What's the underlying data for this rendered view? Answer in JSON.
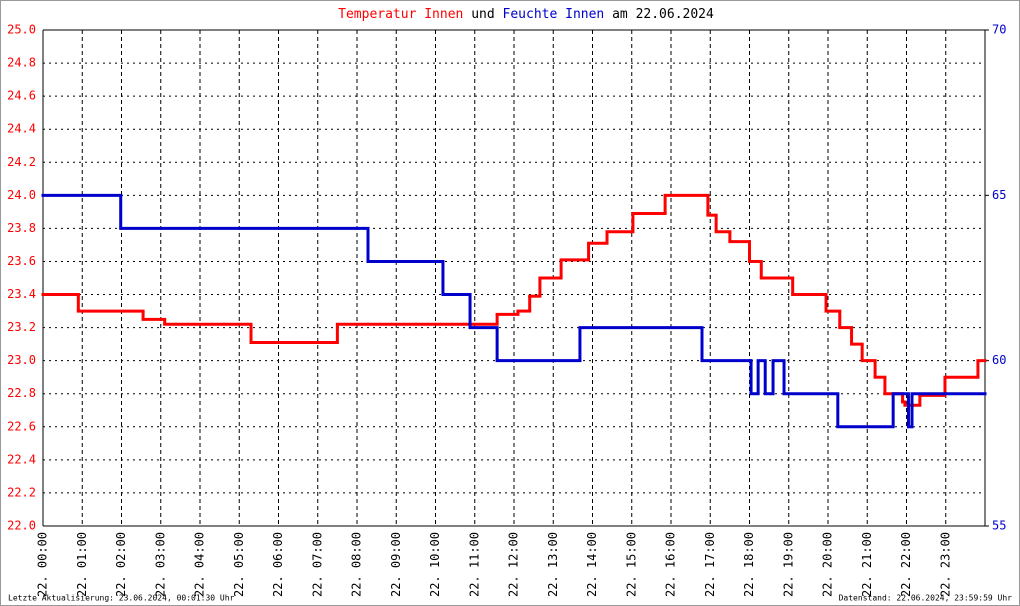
{
  "chart_data": {
    "type": "step-line",
    "title": [
      {
        "text": "Temperatur Innen",
        "color": "#ff0000"
      },
      {
        "text": "und",
        "color": "#000000"
      },
      {
        "text": "Feuchte Innen",
        "color": "#0000cc"
      },
      {
        "text": "am 22.06.2024",
        "color": "#000000"
      }
    ],
    "footer_left": "Letzte Aktualisierung: 23.06.2024, 00:01:30 Uhr",
    "footer_right": "Datenstand: 22.06.2024, 23:59:59 Uhr",
    "xlim": [
      0,
      24
    ],
    "xticks": [
      {
        "value": 0,
        "label": "22. 00:00"
      },
      {
        "value": 1,
        "label": "22. 01:00"
      },
      {
        "value": 2,
        "label": "22. 02:00"
      },
      {
        "value": 3,
        "label": "22. 03:00"
      },
      {
        "value": 4,
        "label": "22. 04:00"
      },
      {
        "value": 5,
        "label": "22. 05:00"
      },
      {
        "value": 6,
        "label": "22. 06:00"
      },
      {
        "value": 7,
        "label": "22. 07:00"
      },
      {
        "value": 8,
        "label": "22. 08:00"
      },
      {
        "value": 9,
        "label": "22. 09:00"
      },
      {
        "value": 10,
        "label": "22. 10:00"
      },
      {
        "value": 11,
        "label": "22. 11:00"
      },
      {
        "value": 12,
        "label": "22. 12:00"
      },
      {
        "value": 13,
        "label": "22. 13:00"
      },
      {
        "value": 14,
        "label": "22. 14:00"
      },
      {
        "value": 15,
        "label": "22. 15:00"
      },
      {
        "value": 16,
        "label": "22. 16:00"
      },
      {
        "value": 17,
        "label": "22. 17:00"
      },
      {
        "value": 18,
        "label": "22. 18:00"
      },
      {
        "value": 19,
        "label": "22. 19:00"
      },
      {
        "value": 20,
        "label": "22. 20:00"
      },
      {
        "value": 21,
        "label": "22. 21:00"
      },
      {
        "value": 22,
        "label": "22. 22:00"
      },
      {
        "value": 23,
        "label": "22. 23:00"
      }
    ],
    "ylim": [
      22.0,
      25.0
    ],
    "yticks": [
      {
        "value": 22.0,
        "label": "22.0"
      },
      22.2,
      22.4,
      22.6,
      22.8,
      {
        "value": 23.0,
        "label": "23.0"
      },
      23.2,
      23.4,
      23.6,
      23.8,
      {
        "value": 24.0,
        "label": "24.0"
      },
      24.2,
      24.4,
      24.6,
      24.8,
      {
        "value": 25.0,
        "label": "25.0"
      }
    ],
    "y2lim": [
      55,
      70
    ],
    "y2ticks": [
      55,
      60,
      65,
      70
    ],
    "ytick_color": "#ff0000",
    "y2tick_color": "#0000cc",
    "grid": true,
    "series": [
      {
        "color": "#ff0000",
        "axis": "y",
        "x": [
          0,
          0.9,
          2.55,
          3.1,
          5.3,
          7.5,
          11.57,
          12.1,
          12.4,
          12.66,
          13.2,
          13.9,
          14.37,
          15.03,
          15.85,
          16.94,
          17.15,
          17.5,
          18.0,
          18.3,
          19.1,
          19.95,
          20.3,
          20.6,
          20.87,
          21.2,
          21.45,
          21.9,
          21.96,
          22.34,
          22.98,
          23.82
        ],
        "values": [
          23.4,
          23.3,
          23.25,
          23.22,
          23.11,
          23.22,
          23.28,
          23.3,
          23.39,
          23.5,
          23.61,
          23.71,
          23.78,
          23.89,
          24.0,
          23.88,
          23.78,
          23.72,
          23.6,
          23.5,
          23.4,
          23.3,
          23.2,
          23.1,
          23.0,
          22.9,
          22.8,
          22.75,
          22.73,
          22.79,
          22.9,
          23.0
        ]
      },
      {
        "color": "#0000cc",
        "axis": "y2",
        "x": [
          0,
          1.98,
          8.28,
          10.19,
          10.88,
          11.57,
          13.68,
          16.79,
          18.04,
          18.22,
          18.4,
          18.6,
          18.88,
          20.25,
          21.66,
          22.05,
          22.14
        ],
        "values": [
          65,
          64,
          63,
          62,
          61,
          60,
          61,
          60,
          59,
          60,
          59,
          60,
          59,
          58,
          59,
          58,
          59
        ]
      }
    ]
  }
}
